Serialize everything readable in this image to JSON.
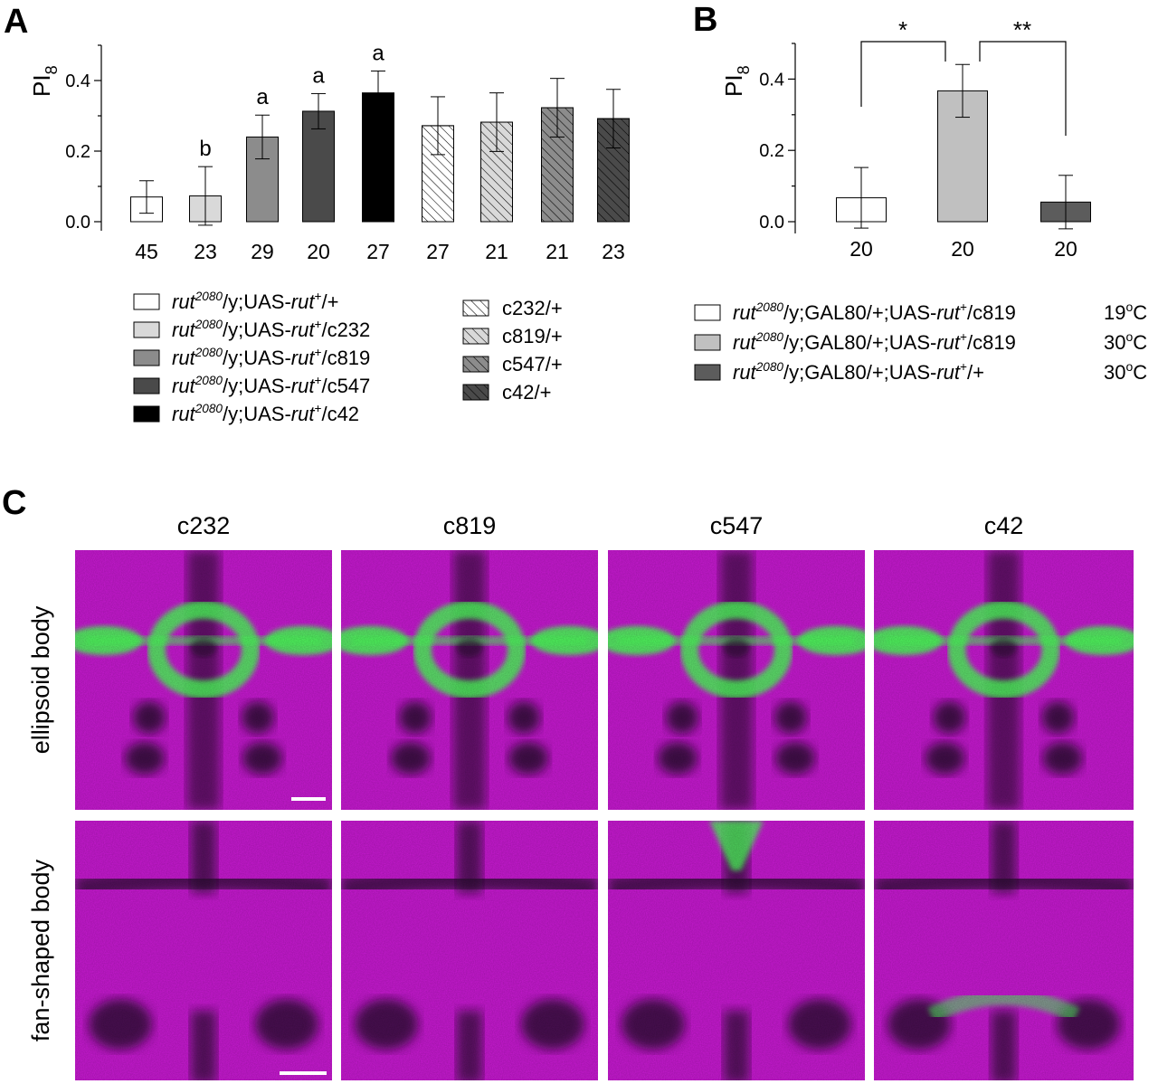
{
  "panels": {
    "a_label": "A",
    "b_label": "B",
    "c_label": "C"
  },
  "axis": {
    "ylabel_main": "PI",
    "ylabel_sub": "8"
  },
  "colors": {
    "white": "#ffffff",
    "light": "#d9d9d9",
    "mid": "#8c8c8c",
    "dark": "#4a4a4a",
    "black": "#000000",
    "b_light": "#c0c0c0",
    "b_dark": "#5c5c5c",
    "magenta": "#c81ad2",
    "green": "#4cff5a"
  },
  "chart_data": [
    {
      "type": "bar",
      "panel": "A",
      "ylabel": "PI8",
      "ylim": [
        0,
        0.5
      ],
      "yticks": [
        "0.0",
        "0.2",
        "0.4"
      ],
      "categories": [
        "45",
        "23",
        "29",
        "20",
        "27",
        "27",
        "21",
        "21",
        "23"
      ],
      "values": [
        0.07,
        0.073,
        0.24,
        0.313,
        0.365,
        0.272,
        0.282,
        0.323,
        0.292
      ],
      "errors": [
        0.046,
        0.083,
        0.062,
        0.05,
        0.062,
        0.082,
        0.083,
        0.083,
        0.083
      ],
      "fills": [
        "white",
        "light",
        "mid",
        "dark",
        "black",
        "white",
        "light",
        "mid",
        "dark"
      ],
      "hatched": [
        false,
        false,
        false,
        false,
        false,
        true,
        true,
        true,
        true
      ],
      "annotations": [
        "",
        "b",
        "a",
        "a",
        "a",
        "",
        "",
        "",
        ""
      ],
      "legend_left": [
        {
          "pre": "rut",
          "sup": "2080",
          "mid": "/y;UAS-",
          "it": "rut",
          "sup2": "+",
          "post": "/+",
          "fill": "white"
        },
        {
          "pre": "rut",
          "sup": "2080",
          "mid": "/y;UAS-",
          "it": "rut",
          "sup2": "+",
          "post": "/c232",
          "fill": "light"
        },
        {
          "pre": "rut",
          "sup": "2080",
          "mid": "/y;UAS-",
          "it": "rut",
          "sup2": "+",
          "post": "/c819",
          "fill": "mid"
        },
        {
          "pre": "rut",
          "sup": "2080",
          "mid": "/y;UAS-",
          "it": "rut",
          "sup2": "+",
          "post": "/c547",
          "fill": "dark"
        },
        {
          "pre": "rut",
          "sup": "2080",
          "mid": "/y;UAS-",
          "it": "rut",
          "sup2": "+",
          "post": "/c42",
          "fill": "black"
        }
      ],
      "legend_right": [
        {
          "label": "c232/+",
          "fill": "white"
        },
        {
          "label": "c819/+",
          "fill": "light"
        },
        {
          "label": "c547/+",
          "fill": "mid"
        },
        {
          "label": "c42/+",
          "fill": "dark"
        }
      ]
    },
    {
      "type": "bar",
      "panel": "B",
      "ylabel": "PI8",
      "ylim": [
        0,
        0.5
      ],
      "yticks": [
        "0.0",
        "0.2",
        "0.4"
      ],
      "categories": [
        "20",
        "20",
        "20"
      ],
      "values": [
        0.067,
        0.367,
        0.055
      ],
      "errors": [
        0.085,
        0.074,
        0.075
      ],
      "fills": [
        "white",
        "b_light",
        "b_dark"
      ],
      "significance": [
        {
          "from": 0,
          "to": 1,
          "label": "*"
        },
        {
          "from": 1,
          "to": 2,
          "label": "**"
        }
      ],
      "legend": [
        {
          "pre": "rut",
          "sup": "2080",
          "mid": "/y;GAL80/+;UAS-",
          "it": "rut",
          "sup2": "+",
          "post": "/c819",
          "temp": "19",
          "unit": "C",
          "deg": "o",
          "fill": "white"
        },
        {
          "pre": "rut",
          "sup": "2080",
          "mid": "/y;GAL80/+;UAS-",
          "it": "rut",
          "sup2": "+",
          "post": "/c819",
          "temp": "30",
          "unit": "C",
          "deg": "o",
          "fill": "b_light"
        },
        {
          "pre": "rut",
          "sup": "2080",
          "mid": "/y;GAL80/+;UAS-",
          "it": "rut",
          "sup2": "+",
          "post": "/+",
          "temp": "30",
          "unit": "C",
          "deg": "o",
          "fill": "b_dark"
        }
      ]
    }
  ],
  "micrographs": {
    "columns": [
      "c232",
      "c819",
      "c547",
      "c42"
    ],
    "rows": [
      "ellipsoid body",
      "fan-shaped body"
    ]
  }
}
